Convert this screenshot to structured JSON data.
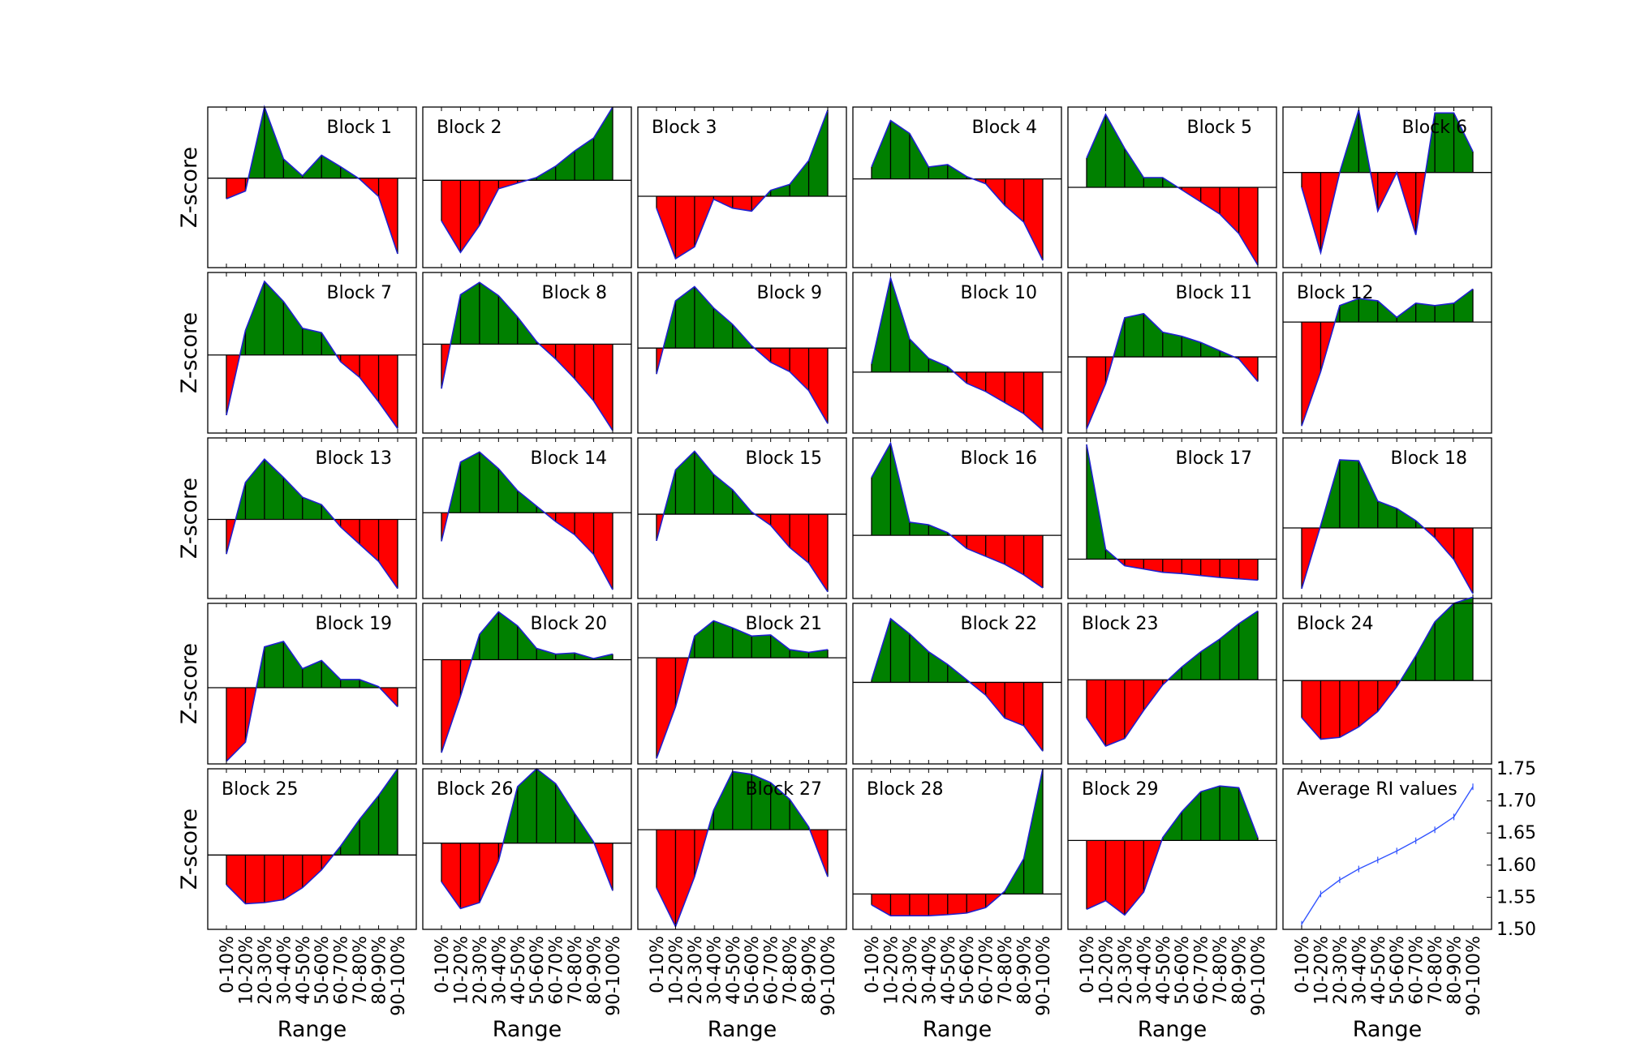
{
  "figure": {
    "ylabel": "Z-score",
    "xlabel": "Range",
    "categories": [
      "0-10%",
      "10-20%",
      "20-30%",
      "30-40%",
      "40-50%",
      "50-60%",
      "60-70%",
      "70-80%",
      "80-90%",
      "90-100%"
    ],
    "colors": {
      "positive": "#008000",
      "negative": "#ff0000",
      "line": "#1f1fd0",
      "average_line": "#3355ff",
      "zero_line": "#000000"
    }
  },
  "chart_data": [
    {
      "type": "area",
      "title": "Block 1",
      "title_pos": "right",
      "ylim": [
        -1.95,
        1.55
      ],
      "values": [
        -0.45,
        -0.28,
        1.55,
        0.42,
        0.05,
        0.5,
        0.25,
        -0.02,
        -0.4,
        -1.65
      ]
    },
    {
      "type": "area",
      "title": "Block 2",
      "title_pos": "left",
      "ylim": [
        -1.55,
        1.3
      ],
      "values": [
        -0.72,
        -1.28,
        -0.8,
        -0.15,
        -0.05,
        0.05,
        0.25,
        0.52,
        0.75,
        1.3
      ]
    },
    {
      "type": "area",
      "title": "Block 3",
      "title_pos": "left",
      "ylim": [
        -1.2,
        1.5
      ],
      "values": [
        -0.2,
        -1.05,
        -0.85,
        -0.05,
        -0.2,
        -0.25,
        0.1,
        0.2,
        0.6,
        1.45
      ]
    },
    {
      "type": "area",
      "title": "Block 4",
      "title_pos": "right",
      "ylim": [
        -1.85,
        1.5
      ],
      "values": [
        0.25,
        1.22,
        0.95,
        0.25,
        0.3,
        0.05,
        -0.1,
        -0.55,
        -0.9,
        -1.7
      ]
    },
    {
      "type": "area",
      "title": "Block 5",
      "title_pos": "right",
      "ylim": [
        -1.65,
        1.65
      ],
      "values": [
        0.6,
        1.5,
        0.8,
        0.2,
        0.2,
        -0.05,
        -0.3,
        -0.55,
        -0.95,
        -1.6
      ]
    },
    {
      "type": "area",
      "title": "Block 6",
      "title_pos": "right",
      "ylim": [
        -1.6,
        1.1
      ],
      "values": [
        -0.25,
        -1.35,
        0.0,
        1.05,
        -0.65,
        0.0,
        -1.05,
        1.0,
        1.0,
        0.35
      ]
    },
    {
      "type": "area",
      "title": "Block 7",
      "title_pos": "right",
      "ylim": [
        -1.75,
        1.85
      ],
      "values": [
        -1.35,
        0.55,
        1.65,
        1.2,
        0.6,
        0.5,
        -0.15,
        -0.5,
        -1.05,
        -1.65
      ]
    },
    {
      "type": "area",
      "title": "Block 8",
      "title_pos": "right",
      "ylim": [
        -1.8,
        1.45
      ],
      "values": [
        -0.9,
        1.0,
        1.25,
        0.98,
        0.55,
        0.05,
        -0.3,
        -0.7,
        -1.15,
        -1.75
      ]
    },
    {
      "type": "area",
      "title": "Block 9",
      "title_pos": "right",
      "ylim": [
        -1.8,
        1.6
      ],
      "values": [
        -0.55,
        1.0,
        1.3,
        0.85,
        0.5,
        0.05,
        -0.3,
        -0.5,
        -0.9,
        -1.6
      ]
    },
    {
      "type": "area",
      "title": "Block 10",
      "title_pos": "right",
      "ylim": [
        -1.1,
        1.8
      ],
      "values": [
        0.15,
        1.7,
        0.6,
        0.25,
        0.1,
        -0.2,
        -0.35,
        -0.55,
        -0.75,
        -1.05
      ]
    },
    {
      "type": "area",
      "title": "Block 11",
      "title_pos": "right",
      "ylim": [
        -1.85,
        2.05
      ],
      "values": [
        -1.75,
        -0.65,
        0.95,
        1.05,
        0.6,
        0.5,
        0.35,
        0.15,
        -0.05,
        -0.6
      ]
    },
    {
      "type": "area",
      "title": "Block 12",
      "title_pos": "left",
      "ylim": [
        -2.35,
        1.05
      ],
      "values": [
        -2.2,
        -1.05,
        0.35,
        0.5,
        0.45,
        0.1,
        0.4,
        0.35,
        0.4,
        0.7
      ]
    },
    {
      "type": "area",
      "title": "Block 13",
      "title_pos": "right",
      "ylim": [
        -1.6,
        1.65
      ],
      "values": [
        -0.7,
        0.75,
        1.22,
        0.85,
        0.45,
        0.3,
        -0.15,
        -0.5,
        -0.85,
        -1.4
      ]
    },
    {
      "type": "area",
      "title": "Block 14",
      "title_pos": "right",
      "ylim": [
        -1.95,
        1.7
      ],
      "values": [
        -0.65,
        1.15,
        1.38,
        1.0,
        0.5,
        0.15,
        -0.2,
        -0.5,
        -0.95,
        -1.75
      ]
    },
    {
      "type": "area",
      "title": "Block 15",
      "title_pos": "right",
      "ylim": [
        -1.9,
        1.72
      ],
      "values": [
        -0.6,
        1.0,
        1.42,
        0.9,
        0.55,
        0.05,
        -0.25,
        -0.75,
        -1.1,
        -1.75
      ]
    },
    {
      "type": "area",
      "title": "Block 16",
      "title_pos": "right",
      "ylim": [
        -1.2,
        1.85
      ],
      "values": [
        1.1,
        1.75,
        0.25,
        0.2,
        0.05,
        -0.25,
        -0.4,
        -0.55,
        -0.75,
        -1.0
      ]
    },
    {
      "type": "area",
      "title": "Block 17",
      "title_pos": "right",
      "ylim": [
        -0.6,
        1.85
      ],
      "values": [
        1.75,
        0.15,
        -0.1,
        -0.15,
        -0.2,
        -0.22,
        -0.25,
        -0.28,
        -0.3,
        -0.32
      ]
    },
    {
      "type": "area",
      "title": "Block 18",
      "title_pos": "right",
      "ylim": [
        -1.45,
        1.85
      ],
      "values": [
        -1.25,
        0.05,
        1.4,
        1.38,
        0.55,
        0.4,
        0.15,
        -0.2,
        -0.65,
        -1.35
      ]
    },
    {
      "type": "area",
      "title": "Block 19",
      "title_pos": "right",
      "ylim": [
        -1.4,
        1.55
      ],
      "values": [
        -1.35,
        -1.0,
        0.75,
        0.85,
        0.35,
        0.5,
        0.15,
        0.15,
        0.02,
        -0.35
      ]
    },
    {
      "type": "area",
      "title": "Block 20",
      "title_pos": "right",
      "ylim": [
        -1.85,
        1.0
      ],
      "values": [
        -1.65,
        -0.65,
        0.45,
        0.85,
        0.6,
        0.2,
        0.1,
        0.12,
        0.02,
        0.1
      ]
    },
    {
      "type": "area",
      "title": "Block 21",
      "title_pos": "right",
      "ylim": [
        -1.95,
        1.0
      ],
      "values": [
        -1.85,
        -0.9,
        0.4,
        0.68,
        0.55,
        0.4,
        0.42,
        0.15,
        0.1,
        0.15
      ]
    },
    {
      "type": "area",
      "title": "Block 22",
      "title_pos": "right",
      "ylim": [
        -1.6,
        1.55
      ],
      "values": [
        0.05,
        1.25,
        0.95,
        0.6,
        0.35,
        0.05,
        -0.25,
        -0.7,
        -0.85,
        -1.35
      ]
    },
    {
      "type": "area",
      "title": "Block 23",
      "title_pos": "left",
      "ylim": [
        -1.65,
        1.5
      ],
      "values": [
        -0.75,
        -1.3,
        -1.15,
        -0.6,
        -0.1,
        0.25,
        0.55,
        0.8,
        1.1,
        1.35
      ]
    },
    {
      "type": "area",
      "title": "Block 24",
      "title_pos": "left",
      "ylim": [
        -1.35,
        1.25
      ],
      "values": [
        -0.6,
        -0.95,
        -0.92,
        -0.75,
        -0.5,
        -0.1,
        0.4,
        0.95,
        1.25,
        1.35
      ]
    },
    {
      "type": "area",
      "title": "Block 25",
      "title_pos": "left",
      "ylim": [
        -1.25,
        1.45
      ],
      "values": [
        -0.5,
        -0.82,
        -0.8,
        -0.75,
        -0.55,
        -0.25,
        0.15,
        0.6,
        1.0,
        1.45
      ]
    },
    {
      "type": "area",
      "title": "Block 26",
      "title_pos": "left",
      "ylim": [
        -1.45,
        1.25
      ],
      "values": [
        -0.65,
        -1.1,
        -1.0,
        -0.3,
        0.95,
        1.25,
        1.0,
        0.5,
        0.02,
        -0.8
      ]
    },
    {
      "type": "area",
      "title": "Block 27",
      "title_pos": "right",
      "ylim": [
        -1.8,
        1.1
      ],
      "values": [
        -1.05,
        -1.75,
        -0.85,
        0.35,
        1.05,
        1.0,
        0.85,
        0.55,
        0.05,
        -0.85
      ]
    },
    {
      "type": "area",
      "title": "Block 28",
      "title_pos": "left",
      "ylim": [
        -0.65,
        2.3
      ],
      "values": [
        -0.2,
        -0.4,
        -0.4,
        -0.4,
        -0.38,
        -0.35,
        -0.25,
        0.05,
        0.65,
        2.3
      ]
    },
    {
      "type": "area",
      "title": "Block 29",
      "title_pos": "left",
      "ylim": [
        -1.55,
        1.25
      ],
      "values": [
        -1.2,
        -1.05,
        -1.3,
        -0.9,
        0.05,
        0.5,
        0.85,
        0.95,
        0.92,
        0.05
      ]
    },
    {
      "type": "line",
      "title": "Average RI values",
      "title_pos": "left",
      "ylim": [
        1.5,
        1.75
      ],
      "yticks": [
        "1.50",
        "1.55",
        "1.60",
        "1.65",
        "1.70",
        "1.75"
      ],
      "values": [
        1.508,
        1.555,
        1.577,
        1.594,
        1.608,
        1.622,
        1.638,
        1.655,
        1.675,
        1.722
      ]
    }
  ]
}
